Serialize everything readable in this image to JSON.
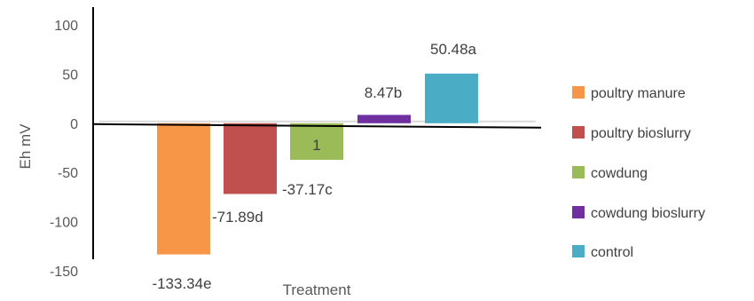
{
  "chart_data": {
    "type": "bar",
    "title": "",
    "xlabel": "Treatment",
    "ylabel": "Eh mV",
    "ylim": [
      -150,
      100
    ],
    "yticks": [
      100,
      50,
      0,
      -50,
      -100,
      -150
    ],
    "grid": false,
    "legend_position": "right",
    "categories": [
      "poultry manure",
      "poultry bioslurry",
      "cowdung",
      "cowdung bioslurry",
      "control"
    ],
    "values": [
      -133.34,
      -71.89,
      -37.17,
      8.47,
      50.48
    ],
    "data_labels": [
      "-133.34e",
      "-71.89d",
      "-37.17c",
      "8.47b",
      "50.48a"
    ],
    "inner_labels": [
      "",
      "",
      "1",
      "",
      ""
    ],
    "colors": [
      "#F79646",
      "#C0504D",
      "#9BBB59",
      "#7030A0",
      "#4BACC6"
    ]
  }
}
